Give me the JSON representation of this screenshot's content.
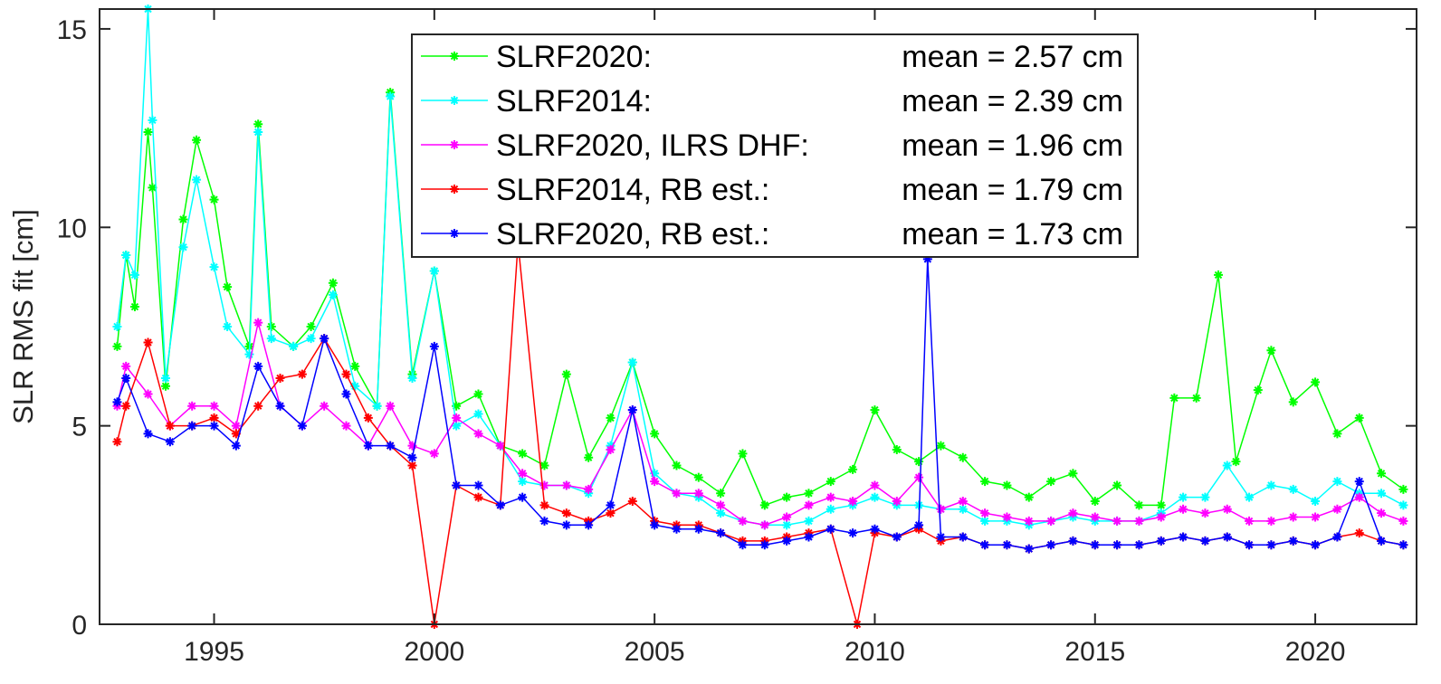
{
  "chart_data": {
    "type": "line",
    "ylabel": "SLR RMS fit [cm]",
    "xlabel": "",
    "title": "",
    "xlim": [
      1992.4,
      2022.3
    ],
    "ylim": [
      0,
      15.5
    ],
    "x_ticks": [
      1995,
      2000,
      2005,
      2010,
      2015,
      2020
    ],
    "y_ticks": [
      0,
      5,
      10,
      15
    ],
    "marker": "asterisk",
    "grid": false,
    "legend_placement": "top-center",
    "series": [
      {
        "name": "SLRF2020:",
        "mean_label": "mean = 2.57 cm",
        "color": "#00ff00",
        "x": [
          1992.8,
          1993.0,
          1993.2,
          1993.5,
          1993.6,
          1993.9,
          1994.3,
          1994.6,
          1995.0,
          1995.3,
          1995.8,
          1996.0,
          1996.3,
          1996.8,
          1997.2,
          1997.7,
          1998.2,
          1998.7,
          1999.0,
          1999.5,
          2000.0,
          2000.5,
          2001.0,
          2001.5,
          2002.0,
          2002.5,
          2003.0,
          2003.5,
          2004.0,
          2004.5,
          2005.0,
          2005.5,
          2006.0,
          2006.5,
          2007.0,
          2007.5,
          2008.0,
          2008.5,
          2009.0,
          2009.5,
          2010.0,
          2010.5,
          2011.0,
          2011.5,
          2012.0,
          2012.5,
          2013.0,
          2013.5,
          2014.0,
          2014.5,
          2015.0,
          2015.5,
          2016.0,
          2016.5,
          2016.8,
          2017.3,
          2017.8,
          2018.2,
          2018.7,
          2019.0,
          2019.5,
          2020.0,
          2020.5,
          2021.0,
          2021.5,
          2022.0
        ],
        "y": [
          7.0,
          9.3,
          8.0,
          12.4,
          11.0,
          6.0,
          10.2,
          12.2,
          10.7,
          8.5,
          7.0,
          12.6,
          7.5,
          7.0,
          7.5,
          8.6,
          6.5,
          5.5,
          13.4,
          6.3,
          8.9,
          5.5,
          5.8,
          4.5,
          4.3,
          4.0,
          6.3,
          4.2,
          5.2,
          6.6,
          4.8,
          4.0,
          3.7,
          3.3,
          4.3,
          3.0,
          3.2,
          3.3,
          3.6,
          3.9,
          5.4,
          4.4,
          4.1,
          4.5,
          4.2,
          3.6,
          3.5,
          3.2,
          3.6,
          3.8,
          3.1,
          3.5,
          3.0,
          3.0,
          5.7,
          5.7,
          8.8,
          4.1,
          5.9,
          6.9,
          5.6,
          6.1,
          4.8,
          5.2,
          3.8,
          3.4
        ]
      },
      {
        "name": "SLRF2014:",
        "mean_label": "mean = 2.39 cm",
        "color": "#00ffff",
        "x": [
          1992.8,
          1993.0,
          1993.2,
          1993.5,
          1993.6,
          1993.9,
          1994.3,
          1994.6,
          1995.0,
          1995.3,
          1995.8,
          1996.0,
          1996.3,
          1996.8,
          1997.2,
          1997.7,
          1998.2,
          1998.7,
          1999.0,
          1999.5,
          2000.0,
          2000.5,
          2001.0,
          2001.5,
          2002.0,
          2002.5,
          2003.0,
          2003.5,
          2004.0,
          2004.5,
          2005.0,
          2005.5,
          2006.0,
          2006.5,
          2007.0,
          2007.5,
          2008.0,
          2008.5,
          2009.0,
          2009.5,
          2010.0,
          2010.5,
          2011.0,
          2011.5,
          2012.0,
          2012.5,
          2013.0,
          2013.5,
          2014.0,
          2014.5,
          2015.0,
          2015.5,
          2016.0,
          2016.5,
          2017.0,
          2017.5,
          2018.0,
          2018.5,
          2019.0,
          2019.5,
          2020.0,
          2020.5,
          2021.0,
          2021.5,
          2022.0
        ],
        "y": [
          7.5,
          9.3,
          8.8,
          15.5,
          12.7,
          6.2,
          9.5,
          11.2,
          9.0,
          7.5,
          6.8,
          12.4,
          7.2,
          7.0,
          7.2,
          8.3,
          6.0,
          5.5,
          13.3,
          6.2,
          8.9,
          5.0,
          5.3,
          4.5,
          3.6,
          3.5,
          3.5,
          3.3,
          4.5,
          6.6,
          3.8,
          3.3,
          3.2,
          2.8,
          2.6,
          2.5,
          2.5,
          2.6,
          2.9,
          3.0,
          3.2,
          3.0,
          3.0,
          2.9,
          2.9,
          2.6,
          2.6,
          2.5,
          2.6,
          2.7,
          2.6,
          2.6,
          2.6,
          2.8,
          3.2,
          3.2,
          4.0,
          3.2,
          3.5,
          3.4,
          3.1,
          3.6,
          3.3,
          3.3,
          3.0
        ]
      },
      {
        "name": "SLRF2020, ILRS DHF:",
        "mean_label": "mean = 1.96 cm",
        "color": "#ff00ff",
        "x": [
          1992.8,
          1993.0,
          1993.5,
          1994.0,
          1994.5,
          1995.0,
          1995.5,
          1996.0,
          1996.5,
          1997.0,
          1997.5,
          1998.0,
          1998.5,
          1999.0,
          1999.5,
          2000.0,
          2000.5,
          2001.0,
          2001.5,
          2002.0,
          2002.5,
          2003.0,
          2003.5,
          2004.0,
          2004.5,
          2005.0,
          2005.5,
          2006.0,
          2006.5,
          2007.0,
          2007.5,
          2008.0,
          2008.5,
          2009.0,
          2009.5,
          2010.0,
          2010.5,
          2011.0,
          2011.5,
          2012.0,
          2012.5,
          2013.0,
          2013.5,
          2014.0,
          2014.5,
          2015.0,
          2015.5,
          2016.0,
          2016.5,
          2017.0,
          2017.5,
          2018.0,
          2018.5,
          2019.0,
          2019.5,
          2020.0,
          2020.5,
          2021.0,
          2021.5,
          2022.0
        ],
        "y": [
          5.5,
          6.5,
          5.8,
          5.0,
          5.5,
          5.5,
          5.0,
          7.6,
          5.5,
          5.0,
          5.5,
          5.0,
          4.5,
          5.5,
          4.5,
          4.3,
          5.2,
          4.8,
          4.5,
          3.8,
          3.5,
          3.5,
          3.4,
          4.4,
          5.4,
          3.6,
          3.3,
          3.3,
          3.0,
          2.6,
          2.5,
          2.7,
          3.0,
          3.2,
          3.1,
          3.5,
          3.1,
          3.7,
          2.9,
          3.1,
          2.8,
          2.7,
          2.6,
          2.6,
          2.8,
          2.7,
          2.6,
          2.6,
          2.7,
          2.9,
          2.8,
          2.9,
          2.6,
          2.6,
          2.7,
          2.7,
          2.9,
          3.2,
          2.8,
          2.6
        ]
      },
      {
        "name": "SLRF2014, RB est.:",
        "mean_label": "mean = 1.79 cm",
        "color": "#ff0000",
        "x": [
          1992.8,
          1993.0,
          1993.5,
          1994.0,
          1994.5,
          1995.0,
          1995.5,
          1996.0,
          1996.5,
          1997.0,
          1997.5,
          1998.0,
          1998.5,
          1999.0,
          1999.5,
          2000.0,
          2000.5,
          2001.0,
          2001.5,
          2001.9,
          2002.5,
          2003.0,
          2003.5,
          2004.0,
          2004.5,
          2005.0,
          2005.5,
          2006.0,
          2006.5,
          2007.0,
          2007.5,
          2008.0,
          2008.5,
          2009.0,
          2009.6,
          2010.0,
          2010.5,
          2011.0,
          2011.5,
          2012.0,
          2012.5,
          2013.0,
          2013.5,
          2014.0,
          2014.5,
          2015.0,
          2015.5,
          2016.0,
          2016.5,
          2017.0,
          2017.5,
          2018.0,
          2018.5,
          2019.0,
          2019.5,
          2020.0,
          2020.5,
          2021.0,
          2021.5,
          2022.0
        ],
        "y": [
          4.6,
          5.5,
          7.1,
          5.0,
          5.0,
          5.2,
          4.8,
          5.5,
          6.2,
          6.3,
          7.2,
          6.3,
          5.2,
          4.5,
          4.0,
          0.0,
          3.5,
          3.2,
          3.0,
          9.6,
          3.0,
          2.8,
          2.6,
          2.8,
          3.1,
          2.6,
          2.5,
          2.5,
          2.3,
          2.1,
          2.1,
          2.2,
          2.3,
          2.4,
          0.0,
          2.3,
          2.2,
          2.4,
          2.1,
          2.2,
          2.0,
          2.0,
          1.9,
          2.0,
          2.1,
          2.0,
          2.0,
          2.0,
          2.1,
          2.2,
          2.1,
          2.2,
          2.0,
          2.0,
          2.1,
          2.0,
          2.2,
          2.3,
          2.1,
          2.0
        ]
      },
      {
        "name": "SLRF2020, RB est.:",
        "mean_label": "mean = 1.73 cm",
        "color": "#0000ff",
        "x": [
          1992.8,
          1993.0,
          1993.5,
          1994.0,
          1994.5,
          1995.0,
          1995.5,
          1996.0,
          1996.5,
          1997.0,
          1997.5,
          1998.0,
          1998.5,
          1999.0,
          1999.5,
          2000.0,
          2000.5,
          2001.0,
          2001.5,
          2002.0,
          2002.5,
          2003.0,
          2003.5,
          2004.0,
          2004.5,
          2005.0,
          2005.5,
          2006.0,
          2006.5,
          2007.0,
          2007.5,
          2008.0,
          2008.5,
          2009.0,
          2009.5,
          2010.0,
          2010.5,
          2011.0,
          2011.2,
          2011.5,
          2012.0,
          2012.5,
          2013.0,
          2013.5,
          2014.0,
          2014.5,
          2015.0,
          2015.5,
          2016.0,
          2016.5,
          2017.0,
          2017.5,
          2018.0,
          2018.5,
          2019.0,
          2019.5,
          2020.0,
          2020.5,
          2021.0,
          2021.5,
          2022.0
        ],
        "y": [
          5.6,
          6.2,
          4.8,
          4.6,
          5.0,
          5.0,
          4.5,
          6.5,
          5.5,
          5.0,
          7.2,
          5.8,
          4.5,
          4.5,
          4.2,
          7.0,
          3.5,
          3.5,
          3.0,
          3.2,
          2.6,
          2.5,
          2.5,
          3.0,
          5.4,
          2.5,
          2.4,
          2.4,
          2.3,
          2.0,
          2.0,
          2.1,
          2.2,
          2.4,
          2.3,
          2.4,
          2.2,
          2.5,
          9.2,
          2.2,
          2.2,
          2.0,
          2.0,
          1.9,
          2.0,
          2.1,
          2.0,
          2.0,
          2.0,
          2.1,
          2.2,
          2.1,
          2.2,
          2.0,
          2.0,
          2.1,
          2.0,
          2.2,
          3.6,
          2.1,
          2.0
        ]
      }
    ]
  }
}
